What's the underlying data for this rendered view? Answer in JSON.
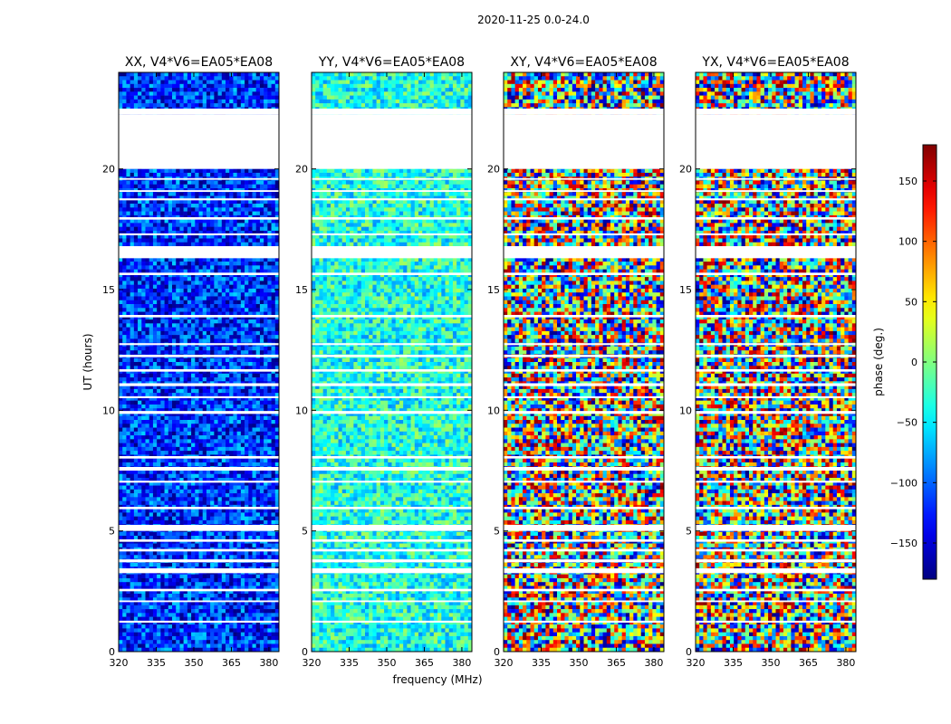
{
  "chart_data": {
    "type": "heatmap",
    "title": "2020-11-25 0.0-24.0",
    "xlabel": "frequency (MHz)",
    "ylabel": "UT (hours)",
    "colorbar_label": "phase (deg.)",
    "colormap": "jet",
    "xlim": [
      320,
      384
    ],
    "ylim": [
      0,
      24
    ],
    "x_ticks": [
      320,
      335,
      350,
      365,
      380
    ],
    "y_ticks": [
      0,
      5,
      10,
      15,
      20
    ],
    "colorbar_range": [
      -180,
      180
    ],
    "colorbar_ticks": [
      -150,
      -100,
      -50,
      0,
      50,
      100,
      150
    ],
    "panels": [
      {
        "title": "XX, V4*V6=EA05*EA08",
        "mean_phase": -120,
        "spread": 60
      },
      {
        "title": "YY, V4*V6=EA05*EA08",
        "mean_phase": -35,
        "spread": 50
      },
      {
        "title": "XY, V4*V6=EA05*EA08",
        "mean_phase": 0,
        "spread": 180
      },
      {
        "title": "YX, V4*V6=EA05*EA08",
        "mean_phase": 0,
        "spread": 180
      }
    ],
    "flagged_ut_ranges": [
      [
        22.25,
        22.5
      ],
      [
        20.0,
        22.25
      ],
      [
        19.55,
        19.62
      ],
      [
        19.05,
        19.12
      ],
      [
        18.7,
        18.78
      ],
      [
        17.9,
        18.0
      ],
      [
        17.25,
        17.33
      ],
      [
        16.3,
        16.8
      ],
      [
        15.6,
        15.7
      ],
      [
        13.85,
        13.95
      ],
      [
        12.7,
        12.78
      ],
      [
        12.2,
        12.3
      ],
      [
        11.6,
        11.7
      ],
      [
        11.0,
        11.12
      ],
      [
        10.5,
        10.58
      ],
      [
        9.85,
        9.97
      ],
      [
        8.0,
        8.1
      ],
      [
        7.5,
        7.65
      ],
      [
        7.0,
        7.08
      ],
      [
        5.9,
        6.0
      ],
      [
        5.0,
        5.25
      ],
      [
        4.55,
        4.65
      ],
      [
        4.15,
        4.25
      ],
      [
        3.7,
        3.82
      ],
      [
        3.25,
        3.45
      ],
      [
        2.5,
        2.6
      ],
      [
        2.05,
        2.12
      ],
      [
        1.2,
        1.28
      ]
    ]
  }
}
